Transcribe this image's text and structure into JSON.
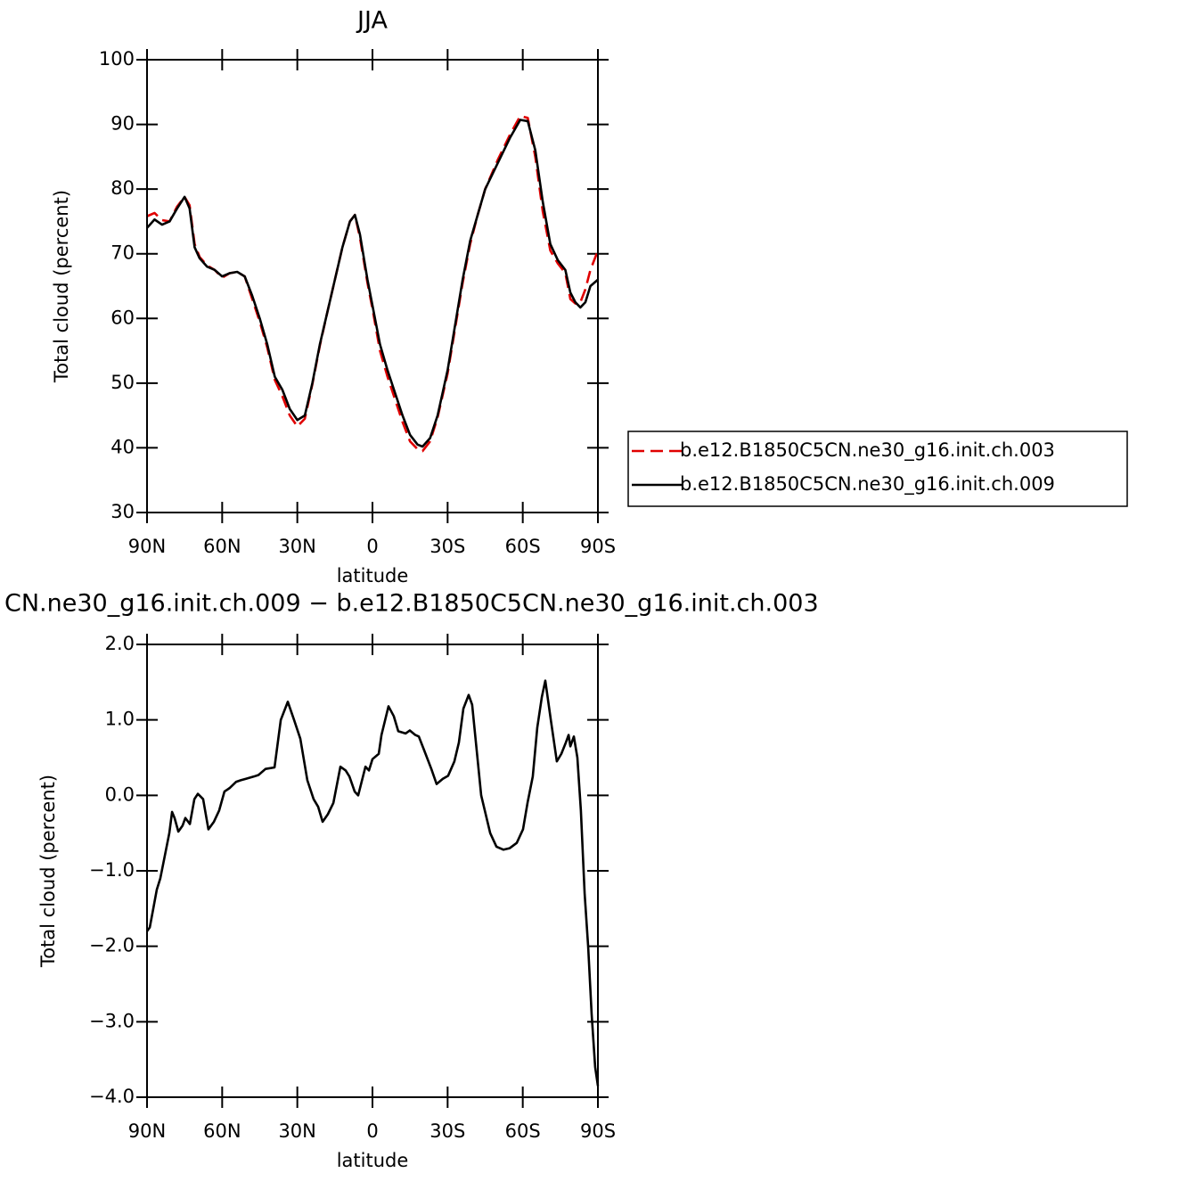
{
  "chart_data": [
    {
      "type": "line",
      "title": "JJA",
      "xlabel": "latitude",
      "ylabel": "Total cloud (percent)",
      "x": [
        90,
        87,
        84,
        81,
        78,
        75,
        73,
        71,
        69,
        66,
        63,
        60,
        57,
        54,
        51,
        48,
        45,
        42,
        39,
        36,
        33,
        30,
        27,
        24,
        21,
        18,
        15,
        12,
        9,
        7,
        5,
        2,
        0,
        -3,
        -6,
        -9,
        -12,
        -15,
        -18,
        -20,
        -23,
        -26,
        -30,
        -33,
        -36,
        -39,
        -42,
        -45,
        -50,
        -55,
        -59,
        -62,
        -65,
        -68,
        -71,
        -74,
        -77,
        -79,
        -81,
        -83,
        -85,
        -87,
        -90
      ],
      "series": [
        {
          "name": "b.e12.B1850C5CN.ne30_g16.init.ch.003",
          "color": "#e00000",
          "style": "dashed",
          "values": [
            75.8,
            76.3,
            75.2,
            75,
            77.3,
            78.8,
            77.5,
            71.5,
            69.5,
            68.2,
            67.5,
            66.3,
            67,
            67.2,
            66.5,
            63,
            59.5,
            55.5,
            50.5,
            48,
            45,
            43.3,
            44.5,
            49.8,
            55.8,
            61,
            66,
            71,
            75,
            76,
            72.5,
            65.5,
            61.5,
            55,
            51,
            47.5,
            44,
            41,
            39.8,
            39.5,
            41,
            44.7,
            51.5,
            58.5,
            65.5,
            71.5,
            76,
            80,
            84.5,
            88.5,
            91.3,
            91,
            85,
            76.5,
            70.5,
            68.5,
            67,
            63,
            62.3,
            62.5,
            64.5,
            67.5,
            70.5
          ]
        },
        {
          "name": "b.e12.B1850C5CN.ne30_g16.init.ch.009",
          "color": "#000000",
          "style": "solid",
          "values": [
            74,
            75.3,
            74.5,
            75,
            77,
            78.8,
            77,
            71,
            69.3,
            68,
            67.5,
            66.5,
            67,
            67.2,
            66.5,
            63.5,
            60,
            56,
            51,
            49,
            46,
            44.3,
            45,
            50,
            56,
            61,
            66,
            71,
            75,
            76,
            73,
            66,
            62,
            56,
            52,
            48.5,
            45,
            42,
            40.5,
            40.2,
            41.5,
            45,
            52,
            59,
            66,
            72,
            76,
            80,
            84,
            88,
            90.7,
            90.5,
            86,
            78,
            71.5,
            69,
            67.5,
            64,
            62.5,
            61.7,
            62.5,
            65,
            66
          ]
        }
      ],
      "xlim": [
        90,
        -90
      ],
      "xticks": [
        {
          "value": 90,
          "label": "90N"
        },
        {
          "value": 60,
          "label": "60N"
        },
        {
          "value": 30,
          "label": "30N"
        },
        0,
        {
          "value": -30,
          "label": "30S"
        },
        {
          "value": -60,
          "label": "60S"
        },
        {
          "value": -90,
          "label": "90S"
        }
      ],
      "ylim": [
        30,
        100
      ],
      "yticks": [
        30,
        40,
        50,
        60,
        70,
        80,
        90,
        100
      ],
      "legend": "right"
    },
    {
      "type": "line",
      "title": "CN.ne30_g16.init.ch.009 − b.e12.B1850C5CN.ne30_g16.init.ch.003",
      "xlabel": "latitude",
      "ylabel": "Total cloud (percent)",
      "x": [
        90,
        88.9,
        87.5,
        86.1,
        84.7,
        82.9,
        81.1,
        80.0,
        79.0,
        77.5,
        75.8,
        74.7,
        72.9,
        71.1,
        69.7,
        67.6,
        65.5,
        63.3,
        61.2,
        59.1,
        56.9,
        54.4,
        52.6,
        50.5,
        47.3,
        45.5,
        42.7,
        39.1,
        36.6,
        33.8,
        31.3,
        28.8,
        26.0,
        23.5,
        21.7,
        19.9,
        17.8,
        15.6,
        12.8,
        10.7,
        9.2,
        7.1,
        5.7,
        2.8,
        1.4,
        0,
        -2.5,
        -3.6,
        -6.4,
        -8.5,
        -10.3,
        -13.2,
        -14.9,
        -17.1,
        -18.5,
        -20.6,
        -23.5,
        -25.6,
        -28.1,
        -30.2,
        -32.7,
        -34.5,
        -36.3,
        -38.4,
        -39.8,
        -41.6,
        -43.4,
        -47.0,
        -49.5,
        -52.3,
        -54.8,
        -57.6,
        -60.1,
        -61.9,
        -64.0,
        -65.8,
        -67.6,
        -69.0,
        -71.2,
        -73.6,
        -75.4,
        -77.2,
        -78.3,
        -79.0,
        -80.4,
        -81.8,
        -83.2,
        -84.7,
        -86.1,
        -87.5,
        -88.9,
        -90
      ],
      "values": [
        -1.8,
        -1.75,
        -1.5,
        -1.25,
        -1.1,
        -0.8,
        -0.5,
        -0.22,
        -0.3,
        -0.48,
        -0.4,
        -0.3,
        -0.38,
        -0.05,
        0.02,
        -0.05,
        -0.45,
        -0.35,
        -0.2,
        0.05,
        0.1,
        0.18,
        0.2,
        0.22,
        0.25,
        0.27,
        0.35,
        0.37,
        1.0,
        1.24,
        1.0,
        0.75,
        0.2,
        -0.05,
        -0.15,
        -0.35,
        -0.25,
        -0.1,
        0.38,
        0.33,
        0.25,
        0.05,
        0.0,
        0.38,
        0.33,
        0.48,
        0.55,
        0.8,
        1.18,
        1.05,
        0.85,
        0.82,
        0.86,
        0.8,
        0.78,
        0.6,
        0.35,
        0.15,
        0.22,
        0.26,
        0.45,
        0.7,
        1.15,
        1.33,
        1.2,
        0.6,
        0.0,
        -0.5,
        -0.68,
        -0.72,
        -0.7,
        -0.63,
        -0.45,
        -0.1,
        0.25,
        0.9,
        1.3,
        1.52,
        1.0,
        0.45,
        0.55,
        0.7,
        0.8,
        0.65,
        0.78,
        0.5,
        -0.2,
        -1.3,
        -2.0,
        -2.9,
        -3.6,
        -3.85
      ],
      "color": "#000000",
      "xlim": [
        90,
        -90
      ],
      "xticks": [
        {
          "value": 90,
          "label": "90N"
        },
        {
          "value": 60,
          "label": "60N"
        },
        {
          "value": 30,
          "label": "30N"
        },
        0,
        {
          "value": -30,
          "label": "30S"
        },
        {
          "value": -60,
          "label": "60S"
        },
        {
          "value": -90,
          "label": "90S"
        }
      ],
      "ylim": [
        -4,
        2
      ],
      "yticks": [
        {
          "value": -4,
          "label": "−4.0"
        },
        {
          "value": -3,
          "label": "−3.0"
        },
        {
          "value": -2,
          "label": "−2.0"
        },
        {
          "value": -1,
          "label": "−1.0"
        },
        {
          "value": 0,
          "label": "0.0"
        },
        {
          "value": 1,
          "label": "1.0"
        },
        {
          "value": 2,
          "label": "2.0"
        }
      ]
    }
  ]
}
